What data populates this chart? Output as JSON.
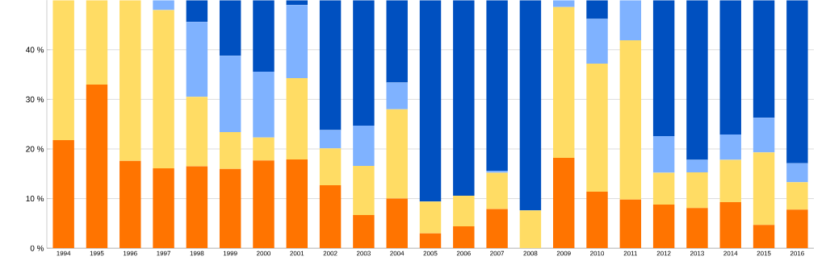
{
  "chart_data": {
    "type": "bar",
    "stacked": true,
    "categories": [
      "1994",
      "1995",
      "1996",
      "1997",
      "1998",
      "1999",
      "2000",
      "2001",
      "2002",
      "2003",
      "2004",
      "2005",
      "2006",
      "2007",
      "2008",
      "2009",
      "2010",
      "2011",
      "2012",
      "2013",
      "2014",
      "2015",
      "2016"
    ],
    "series": [
      {
        "color": "#ff7400",
        "values": [
          21.8,
          33.0,
          17.6,
          16.1,
          16.5,
          16.0,
          17.7,
          17.9,
          12.7,
          6.7,
          10.0,
          3.0,
          4.4,
          7.9,
          0,
          18.2,
          11.4,
          9.8,
          8.8,
          8.1,
          9.3,
          4.7,
          7.8
        ]
      },
      {
        "color": "#ffdc64",
        "values": [
          28.2,
          17.0,
          32.4,
          31.9,
          14.0,
          7.4,
          4.6,
          16.4,
          7.4,
          9.9,
          18.0,
          6.4,
          6.2,
          7.3,
          7.6,
          30.4,
          25.8,
          32.1,
          6.4,
          7.2,
          8.5,
          14.6,
          5.5
        ]
      },
      {
        "color": "#7fb2ff",
        "values": [
          0,
          0,
          0,
          2.0,
          15.1,
          15.4,
          13.3,
          14.7,
          3.7,
          8.1,
          5.4,
          0,
          0,
          0.4,
          0,
          1.4,
          9.0,
          8.1,
          7.4,
          2.5,
          5.1,
          7.0,
          3.8
        ]
      },
      {
        "color": "#0050c0",
        "values": [
          0,
          0,
          0,
          0,
          4.4,
          11.2,
          14.4,
          1.0,
          26.2,
          25.3,
          16.6,
          40.6,
          39.4,
          34.4,
          42.4,
          0,
          3.8,
          0,
          27.4,
          32.2,
          27.1,
          23.7,
          32.9
        ]
      }
    ],
    "ylim": [
      0,
      50
    ],
    "yticks": [
      {
        "value": 0,
        "label": "0 %"
      },
      {
        "value": 10,
        "label": "10 %"
      },
      {
        "value": 20,
        "label": "20 %"
      },
      {
        "value": 30,
        "label": "30 %"
      },
      {
        "value": 40,
        "label": "40 %"
      }
    ],
    "grid": "y"
  }
}
